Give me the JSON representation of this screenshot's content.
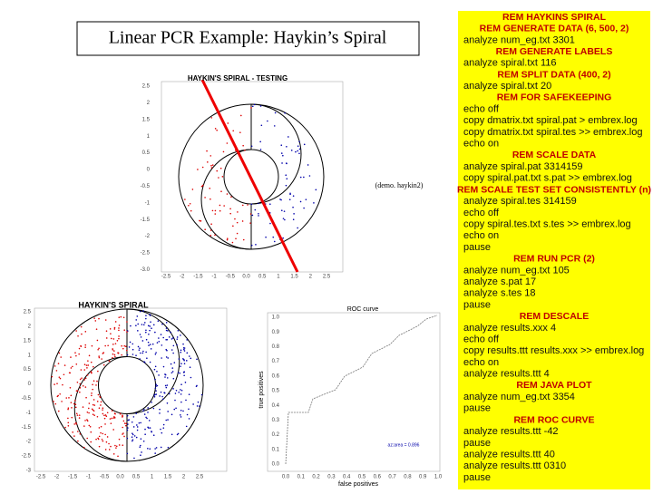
{
  "title": "Linear PCR Example: Haykin’s Spiral",
  "note": "(demo. haykin2)",
  "script": [
    "REM HAYKINS SPIRAL",
    "REM GENERATE DATA (6, 500, 2)",
    "analyze num_eg.txt 3301",
    "REM GENERATE LABELS",
    "analyze spiral.txt 116",
    "REM SPLIT DATA (400, 2)",
    "analyze spiral.txt 20",
    "REM FOR SAFEKEEPING",
    "echo off",
    "copy dmatrix.txt spiral.pat > embrex.log",
    "copy dmatrix.txt spiral.tes >> embrex.log",
    "echo on",
    "REM SCALE DATA",
    "analyze spiral.pat 3314159",
    "copy spiral.pat.txt s.pat >> embrex.log",
    "REM SCALE TEST SET CONSISTENTLY (n)",
    "analyze spiral.tes 314159",
    "echo off",
    "copy spiral.tes.txt s.tes >> embrex.log",
    "echo on",
    "pause",
    "REM RUN PCR (2)",
    "analyze num_eg.txt 105",
    "analyze s.pat 17",
    "analyze s.tes 18",
    "pause",
    "REM DESCALE",
    "analyze results.xxx 4",
    "echo off",
    "copy results.ttt results.xxx >> embrex.log",
    "echo on",
    "analyze results.ttt 4",
    "REM JAVA PLOT",
    "analyze num_eg.txt 3354",
    "pause",
    "REM ROC CURVE",
    "analyze results.ttt -42",
    "pause",
    "analyze results.ttt 40",
    "analyze results.ttt 0310",
    "pause"
  ],
  "figures": [
    {
      "title": "HAYKIN'S SPIRAL - TESTING",
      "yticks": [
        "2.5",
        "2",
        "1.5",
        "1",
        "0.5",
        "0",
        "-0.5",
        "-1",
        "-1.5",
        "-2",
        "-2.5",
        "-3.0"
      ],
      "xticks": [
        "-2.5",
        "-2",
        "-1.5",
        "-1",
        "-0.5",
        "0.0",
        "0.5",
        "1",
        "1.5",
        "2",
        "2.5"
      ]
    },
    {
      "title": "HAYKIN'S SPIRAL",
      "yticks": [
        "2.5",
        "2",
        "1.5",
        "1",
        "0.5",
        "0",
        "-0.5",
        "-1",
        "-1.5",
        "-2",
        "-2.5",
        "-3"
      ],
      "xticks": [
        "-2.5",
        "-2",
        "-1.5",
        "-1",
        "-0.5",
        "0.0",
        "0.5",
        "1",
        "1.5",
        "2",
        "2.5"
      ]
    },
    {
      "title": "ROC curve",
      "xlabel": "false positives",
      "ylabel": "true positives",
      "annotation": "az:area = 0.896",
      "yticks": [
        "1.0",
        "0.9",
        "0.8",
        "0.7",
        "0.6",
        "0.5",
        "0.4",
        "0.3",
        "0.2",
        "0.1",
        "0.0"
      ],
      "xticks": [
        "0.0",
        "0.1",
        "0.2",
        "0.3",
        "0.4",
        "0.5",
        "0.6",
        "0.7",
        "0.8",
        "0.9",
        "1.0"
      ]
    }
  ]
}
